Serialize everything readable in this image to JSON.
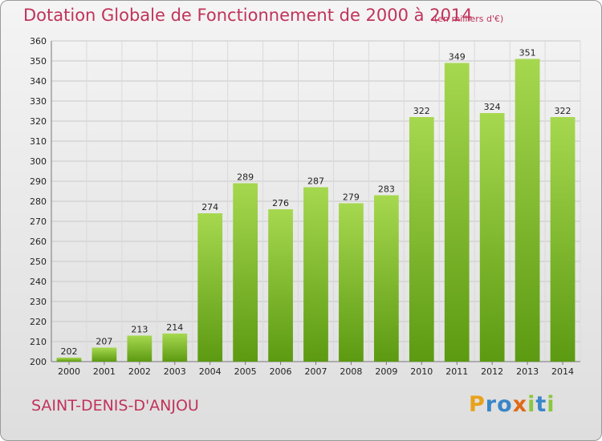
{
  "chart_data": {
    "type": "bar",
    "title": "Dotation Globale de Fonctionnement de 2000 à 2014",
    "subtitle": "(en milliers d'€)",
    "categories": [
      "2000",
      "2001",
      "2002",
      "2003",
      "2004",
      "2005",
      "2006",
      "2007",
      "2008",
      "2009",
      "2010",
      "2011",
      "2012",
      "2013",
      "2014"
    ],
    "values": [
      202,
      207,
      213,
      214,
      274,
      289,
      276,
      287,
      279,
      283,
      322,
      349,
      324,
      351,
      322
    ],
    "ylim": [
      200,
      360
    ],
    "yticks": [
      200,
      210,
      220,
      230,
      240,
      250,
      260,
      270,
      280,
      290,
      300,
      310,
      320,
      330,
      340,
      350,
      360
    ],
    "xlabel": "",
    "ylabel": "",
    "grid": true,
    "bar_color_top": "#a6d84f",
    "bar_color_bottom": "#5c9a12"
  },
  "footer": {
    "commune": "SAINT-DENIS-D'ANJOU",
    "logo_letters": [
      {
        "ch": "P",
        "color": "#e8a21b"
      },
      {
        "ch": "r",
        "color": "#3a86c8"
      },
      {
        "ch": "o",
        "color": "#3a86c8"
      },
      {
        "ch": "x",
        "color": "#e06a18"
      },
      {
        "ch": "i",
        "color": "#8cc63f"
      },
      {
        "ch": "t",
        "color": "#3a86c8"
      },
      {
        "ch": "i",
        "color": "#8cc63f"
      }
    ]
  }
}
